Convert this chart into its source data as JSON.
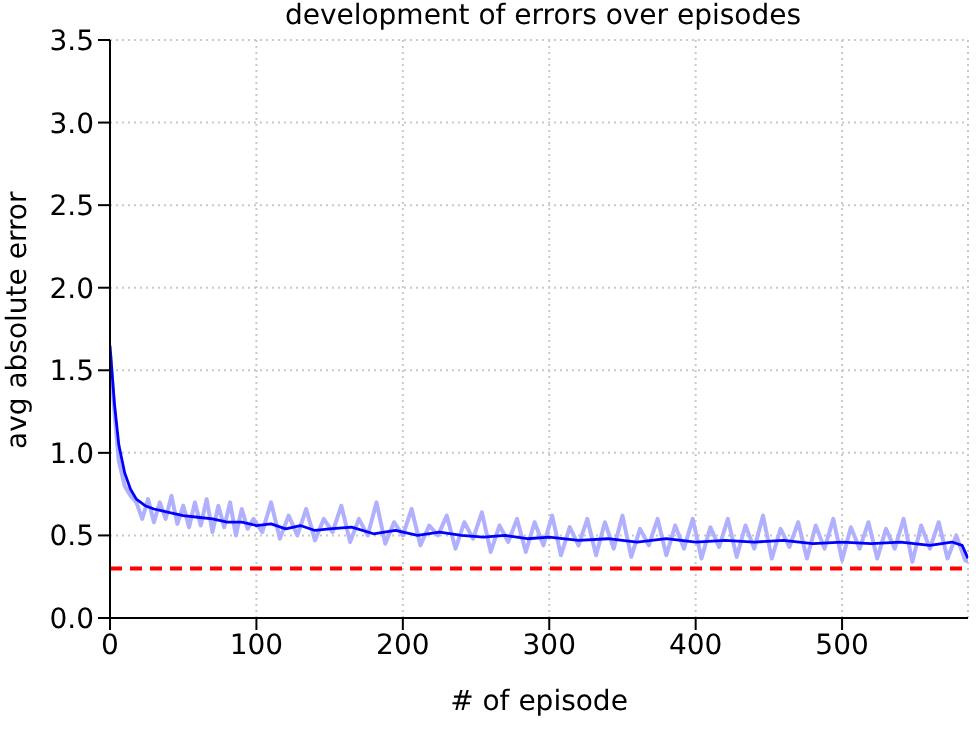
{
  "chart_data": {
    "type": "line",
    "title": "development of errors over episodes",
    "xlabel": "# of episode",
    "ylabel": "avg absolute error",
    "xlim": [
      0,
      586
    ],
    "xticks": [
      0,
      100,
      200,
      300,
      400,
      500
    ],
    "ylim": [
      0,
      3.5
    ],
    "yticks": [
      {
        "value": 0,
        "label": "0.0"
      },
      0.5,
      {
        "value": 1,
        "label": "1.0"
      },
      1.5,
      {
        "value": 2,
        "label": "2.0"
      },
      2.5,
      {
        "value": 3,
        "label": "3.0"
      },
      3.5
    ],
    "grid": true,
    "legend": false,
    "marker": "none",
    "series": [
      {
        "color": "#b0b0ff",
        "x": [
          0,
          3,
          6,
          10,
          14,
          18,
          22,
          26,
          30,
          34,
          38,
          42,
          46,
          50,
          54,
          58,
          62,
          66,
          70,
          74,
          78,
          82,
          86,
          90,
          94,
          98,
          104,
          110,
          116,
          122,
          128,
          134,
          140,
          146,
          152,
          158,
          164,
          170,
          176,
          182,
          188,
          194,
          200,
          206,
          212,
          218,
          224,
          230,
          236,
          242,
          248,
          254,
          260,
          266,
          272,
          278,
          284,
          290,
          296,
          302,
          308,
          314,
          320,
          326,
          332,
          338,
          344,
          350,
          356,
          362,
          368,
          374,
          380,
          386,
          392,
          398,
          404,
          410,
          416,
          422,
          428,
          434,
          440,
          446,
          452,
          458,
          464,
          470,
          476,
          482,
          488,
          494,
          500,
          506,
          512,
          518,
          524,
          530,
          536,
          542,
          548,
          554,
          560,
          566,
          572,
          578,
          584,
          586
        ],
        "values": [
          1.6,
          1.25,
          0.95,
          0.8,
          0.74,
          0.7,
          0.6,
          0.72,
          0.58,
          0.7,
          0.6,
          0.74,
          0.57,
          0.68,
          0.55,
          0.7,
          0.56,
          0.72,
          0.52,
          0.68,
          0.55,
          0.7,
          0.5,
          0.66,
          0.54,
          0.6,
          0.52,
          0.7,
          0.48,
          0.62,
          0.5,
          0.66,
          0.47,
          0.6,
          0.52,
          0.68,
          0.46,
          0.6,
          0.5,
          0.7,
          0.45,
          0.58,
          0.5,
          0.66,
          0.44,
          0.56,
          0.5,
          0.62,
          0.42,
          0.58,
          0.48,
          0.64,
          0.4,
          0.56,
          0.46,
          0.6,
          0.4,
          0.58,
          0.44,
          0.62,
          0.38,
          0.55,
          0.44,
          0.6,
          0.38,
          0.58,
          0.42,
          0.62,
          0.37,
          0.54,
          0.44,
          0.6,
          0.38,
          0.56,
          0.42,
          0.6,
          0.36,
          0.55,
          0.43,
          0.6,
          0.37,
          0.56,
          0.42,
          0.62,
          0.36,
          0.54,
          0.43,
          0.58,
          0.36,
          0.56,
          0.42,
          0.6,
          0.35,
          0.55,
          0.42,
          0.58,
          0.36,
          0.54,
          0.42,
          0.6,
          0.34,
          0.56,
          0.42,
          0.58,
          0.36,
          0.5,
          0.35,
          0.34
        ]
      },
      {
        "color": "#0000ff",
        "x": [
          0,
          3,
          6,
          10,
          14,
          18,
          24,
          30,
          40,
          50,
          60,
          70,
          80,
          90,
          100,
          110,
          120,
          130,
          140,
          150,
          165,
          180,
          195,
          210,
          225,
          240,
          255,
          270,
          285,
          300,
          320,
          340,
          360,
          380,
          400,
          420,
          440,
          460,
          480,
          500,
          520,
          540,
          560,
          575,
          582,
          586
        ],
        "values": [
          1.65,
          1.3,
          1.05,
          0.88,
          0.78,
          0.72,
          0.68,
          0.66,
          0.64,
          0.62,
          0.61,
          0.6,
          0.58,
          0.58,
          0.56,
          0.57,
          0.54,
          0.56,
          0.53,
          0.54,
          0.55,
          0.51,
          0.53,
          0.5,
          0.52,
          0.5,
          0.49,
          0.5,
          0.48,
          0.49,
          0.47,
          0.48,
          0.46,
          0.48,
          0.46,
          0.47,
          0.46,
          0.47,
          0.45,
          0.46,
          0.45,
          0.46,
          0.44,
          0.46,
          0.44,
          0.36
        ]
      }
    ],
    "ref_lines": [
      {
        "axis": "y",
        "value": 0.3,
        "color": "#ff0000",
        "line_style": "dashed"
      }
    ]
  }
}
